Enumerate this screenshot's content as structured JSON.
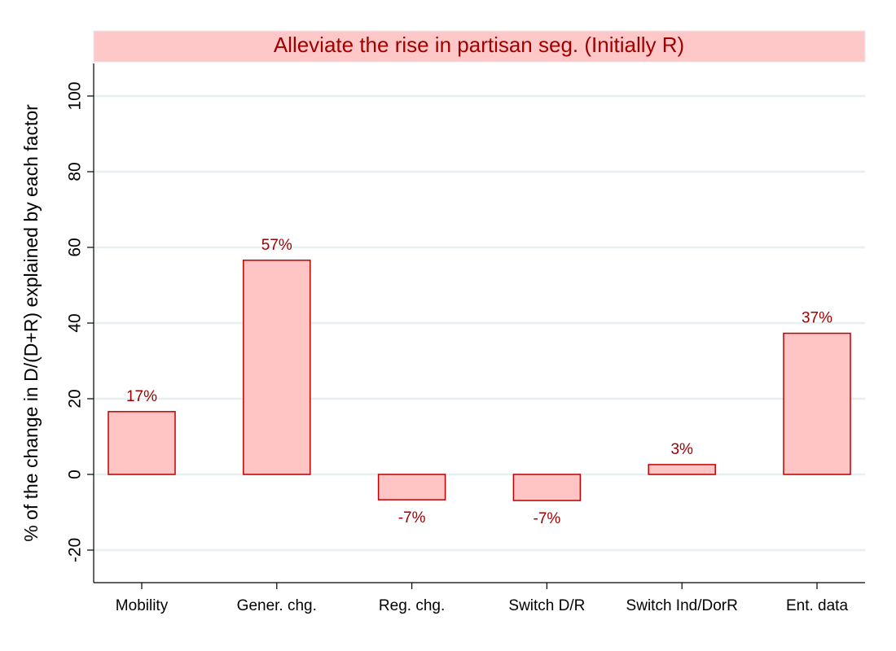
{
  "chart_data": {
    "type": "bar",
    "title": "Alleviate the rise in partisan seg. (Initially R)",
    "y_label": "% of the change in D/(D+R) explained by each factor",
    "categories": [
      "Mobility",
      "Gener. chg.",
      "Reg. chg.",
      "Switch D/R",
      "Switch Ind/DorR",
      "Ent. data"
    ],
    "values": [
      16.6,
      56.6,
      -6.7,
      -6.9,
      2.6,
      37.3
    ],
    "value_labels": [
      "17%",
      "57%",
      "-7%",
      "-7%",
      "3%",
      "37%"
    ],
    "color": "#ffc4c4",
    "edge_color": "#c00000",
    "ylim": [
      -28.6,
      108.6
    ],
    "yticks": [
      -20,
      0,
      20,
      40,
      60,
      80,
      100
    ],
    "grid": true
  }
}
